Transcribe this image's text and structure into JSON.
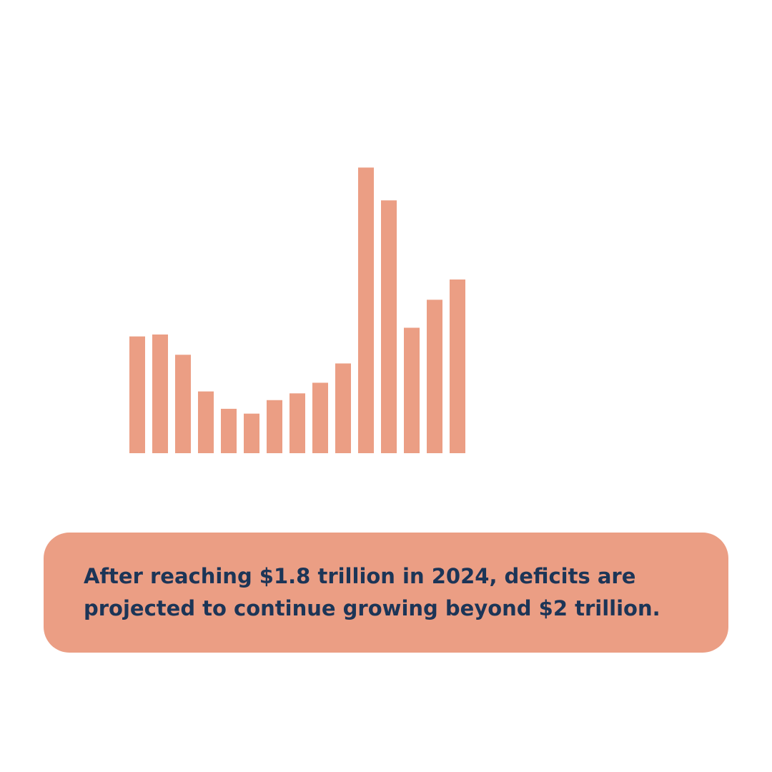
{
  "chart_data": {
    "type": "bar",
    "values": [
      1.21,
      1.23,
      1.02,
      0.64,
      0.46,
      0.41,
      0.55,
      0.62,
      0.73,
      0.93,
      2.96,
      2.62,
      1.3,
      1.59,
      1.8
    ],
    "color": "#eb9e84",
    "ylim": [
      0,
      3
    ],
    "annotations": [
      "After reaching $1.8 trillion in 2024, deficits are",
      "projected to continue growing beyond $2 trillion."
    ]
  }
}
